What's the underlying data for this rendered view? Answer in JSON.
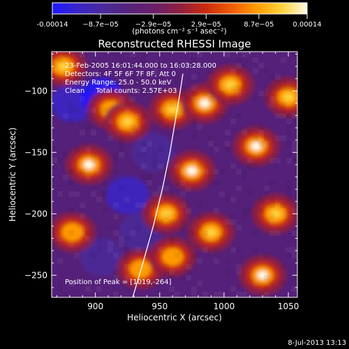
{
  "colorbar": {
    "tick_labels": [
      "-0.00014",
      "−8.7e−05",
      "−2.9e−05",
      "2.9e−05",
      "8.7e−05",
      "0.00014"
    ],
    "tick_values": [
      -0.00014,
      -8.7e-05,
      -2.9e-05,
      2.9e-05,
      8.7e-05,
      0.00014
    ],
    "range": [
      -0.00014,
      0.00014
    ],
    "colormap": [
      "#1d18ff",
      "#3a25c8",
      "#4a2a9a",
      "#55237a",
      "#6a1f6a",
      "#8f1f40",
      "#c82a10",
      "#ef5a00",
      "#ff9a00",
      "#ffd23a",
      "#fffbe6"
    ],
    "units_label": "(photons cm⁻² s⁻¹ asec⁻²)"
  },
  "chart_data": {
    "type": "heatmap",
    "title": "Reconstructed RHESSI Image",
    "xlabel": "Heliocentric X (arcsec)",
    "ylabel": "Heliocentric Y (arcsec)",
    "xlim": [
      866,
      1057
    ],
    "ylim": [
      -268,
      -68
    ],
    "x_ticks": [
      900,
      950,
      1000,
      1050
    ],
    "x_tick_labels": [
      "900",
      "950",
      "1000",
      "1050"
    ],
    "y_ticks": [
      -100,
      -150,
      -200,
      -250
    ],
    "y_tick_labels": [
      "−100",
      "−150",
      "−200",
      "−250"
    ],
    "peak_position": [
      1019,
      -264
    ],
    "hot_spots": [
      {
        "x": 875,
        "y": -80,
        "value": 0.00011
      },
      {
        "x": 912,
        "y": -115,
        "value": 9e-05
      },
      {
        "x": 895,
        "y": -160,
        "value": 0.00013
      },
      {
        "x": 925,
        "y": -125,
        "value": 0.0001
      },
      {
        "x": 935,
        "y": -245,
        "value": 8e-05
      },
      {
        "x": 960,
        "y": -115,
        "value": 0.00012
      },
      {
        "x": 975,
        "y": -165,
        "value": 0.00014
      },
      {
        "x": 985,
        "y": -110,
        "value": 0.00013
      },
      {
        "x": 1005,
        "y": -95,
        "value": 0.00011
      },
      {
        "x": 990,
        "y": -215,
        "value": 0.0001
      },
      {
        "x": 1025,
        "y": -145,
        "value": 0.00014
      },
      {
        "x": 1040,
        "y": -200,
        "value": 0.00012
      },
      {
        "x": 1030,
        "y": -250,
        "value": 0.00014
      },
      {
        "x": 1050,
        "y": -105,
        "value": 0.0001
      },
      {
        "x": 955,
        "y": -200,
        "value": 0.00011
      },
      {
        "x": 960,
        "y": -235,
        "value": 9e-05
      },
      {
        "x": 882,
        "y": -215,
        "value": 8e-05
      }
    ],
    "cold_spots": [
      {
        "x": 882,
        "y": -110,
        "value": -0.00012
      },
      {
        "x": 905,
        "y": -105,
        "value": -0.00014
      },
      {
        "x": 925,
        "y": -185,
        "value": -0.0001
      },
      {
        "x": 945,
        "y": -150,
        "value": -8e-05
      },
      {
        "x": 935,
        "y": -215,
        "value": -9e-05
      },
      {
        "x": 905,
        "y": -235,
        "value": -8e-05
      }
    ],
    "limb_curve": [
      {
        "x": 929,
        "y": -268
      },
      {
        "x": 937,
        "y": -240
      },
      {
        "x": 945,
        "y": -210
      },
      {
        "x": 952,
        "y": -180
      },
      {
        "x": 958,
        "y": -150
      },
      {
        "x": 962,
        "y": -125
      },
      {
        "x": 966,
        "y": -100
      },
      {
        "x": 968,
        "y": -86
      }
    ]
  },
  "annotations": {
    "time": "23-Feb-2005 16:01:44.000 to 16:03:28.000",
    "detectors": "Detectors: 4F 5F 6F 7F 8F, Att 0",
    "energy": "Energy Range: 25.0 - 50.0 keV",
    "clean": "Clean     Total counts: 2.57E+03",
    "peak": "Position of Peak = [1019,-264]"
  },
  "footer": {
    "date": "8-Jul-2013 13:13"
  }
}
